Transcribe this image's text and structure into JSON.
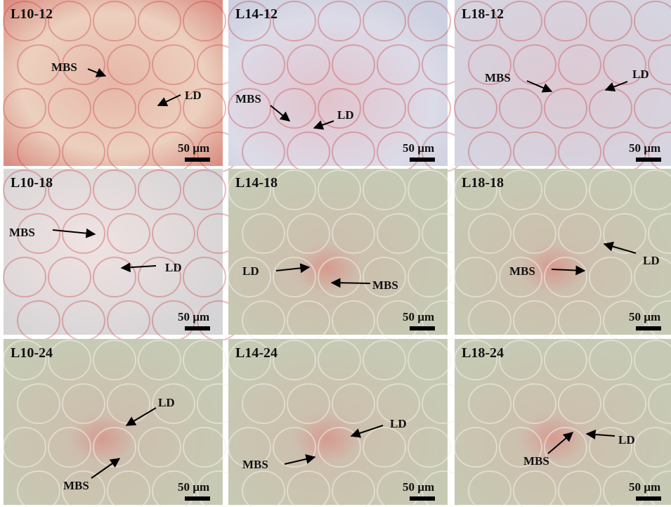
{
  "panels": [
    {
      "label": "L10-12",
      "annotations": [
        "MBS",
        "LD"
      ],
      "scale_bar": "50 µm"
    },
    {
      "label": "L14-12",
      "annotations": [
        "MBS",
        "LD"
      ],
      "scale_bar": "50 µm"
    },
    {
      "label": "L18-12",
      "annotations": [
        "MBS",
        "LD"
      ],
      "scale_bar": "50 µm"
    },
    {
      "label": "L10-18",
      "annotations": [
        "MBS",
        "LD"
      ],
      "scale_bar": "50 µm"
    },
    {
      "label": "L14-18",
      "annotations": [
        "LD",
        "MBS"
      ],
      "scale_bar": "50 µm"
    },
    {
      "label": "L18-18",
      "annotations": [
        "MBS",
        "LD"
      ],
      "scale_bar": "50 µm"
    },
    {
      "label": "L10-24",
      "annotations": [
        "LD",
        "MBS"
      ],
      "scale_bar": "50 µm"
    },
    {
      "label": "L14-24",
      "annotations": [
        "LD",
        "MBS"
      ],
      "scale_bar": "50 µm"
    },
    {
      "label": "L18-24",
      "annotations": [
        "LD",
        "MBS"
      ],
      "scale_bar": "50 µm"
    }
  ]
}
